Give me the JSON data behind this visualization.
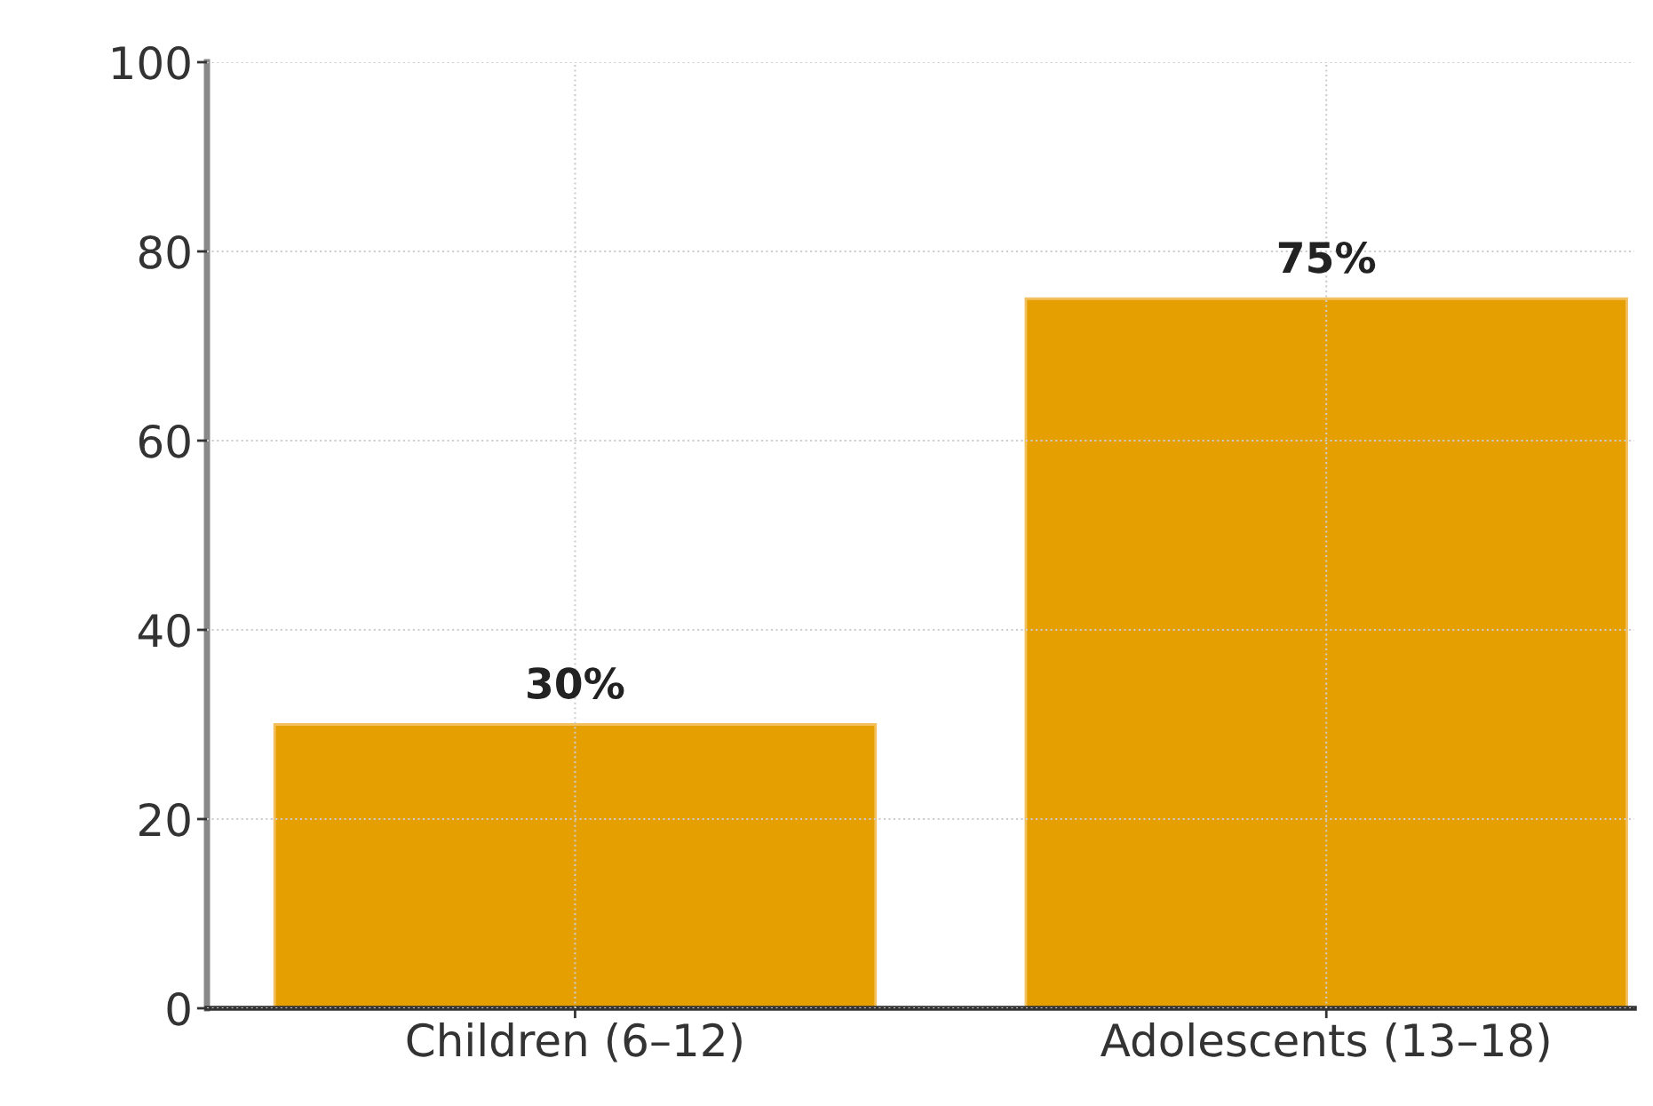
{
  "chart_data": {
    "type": "bar",
    "categories": [
      "Children (6–12)",
      "Adolescents (13–18)"
    ],
    "values": [
      30,
      75
    ],
    "color": "#e69f00",
    "value_labels": [
      "30%",
      "75%"
    ],
    "ylim": [
      0,
      100
    ],
    "yticks": [
      0,
      20,
      40,
      60,
      80,
      100
    ],
    "grid": true
  }
}
